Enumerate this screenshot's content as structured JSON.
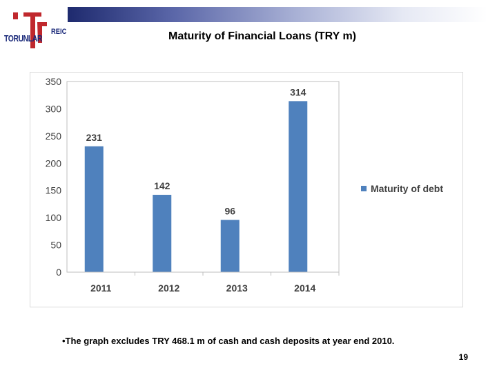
{
  "slide": {
    "title": "Maturity of Financial Loans (TRY m)",
    "footnote": "•The graph excludes TRY 468.1 m of cash and cash deposits at year end 2010.",
    "page_number": "19",
    "logo": {
      "name": "TORUNLAR",
      "suffix": "REIC"
    },
    "colors": {
      "brand_blue": "#1b2a7a",
      "brand_red": "#c0282d"
    }
  },
  "chart_data": {
    "type": "bar",
    "categories": [
      "2011",
      "2012",
      "2013",
      "2014"
    ],
    "series": [
      {
        "name": "Maturity of debt",
        "values": [
          231,
          142,
          96,
          314
        ],
        "color": "#4f81bd"
      }
    ],
    "ylim": [
      0,
      350
    ],
    "yticks": [
      0,
      50,
      100,
      150,
      200,
      250,
      300,
      350
    ],
    "data_labels": true,
    "grid": false,
    "legend": "right"
  }
}
